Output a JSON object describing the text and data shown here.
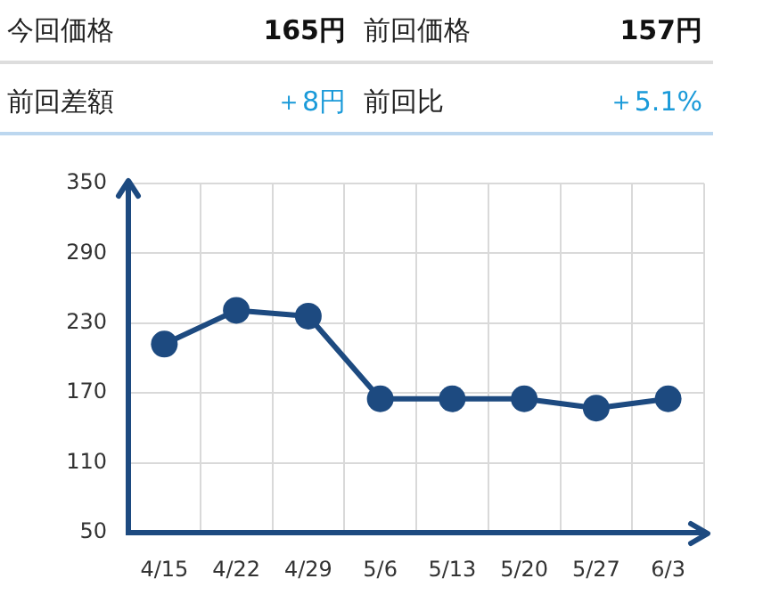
{
  "chart_data": [
    {
      "type": "other",
      "annotations": [
        "今回価格",
        "165円",
        "前回価格",
        "157円",
        "前回差額",
        "＋8円",
        "前回比",
        "＋5.1%"
      ]
    },
    {
      "type": "line",
      "categories": [
        "4/15",
        "4/22",
        "4/29",
        "5/6",
        "5/13",
        "5/20",
        "5/27",
        "6/3"
      ],
      "series": [
        {
          "color": "#1d4a80",
          "values": [
            212,
            241,
            236,
            165,
            165,
            165,
            157,
            165
          ]
        }
      ],
      "ylim": [
        50,
        350
      ],
      "yticks": [
        50,
        110,
        170,
        230,
        290,
        350
      ],
      "grid": true,
      "legend": false,
      "marker": "circle",
      "line_style": "solid"
    }
  ]
}
